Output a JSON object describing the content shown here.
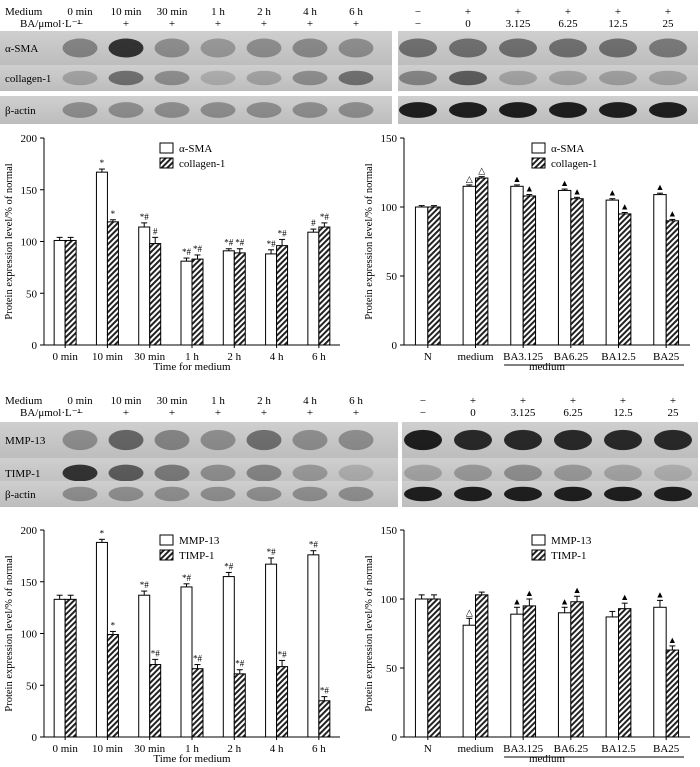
{
  "row_labels": {
    "medium": "Medium",
    "ba": "BA/μmol·L⁻¹"
  },
  "panels": {
    "top_left_blot": {
      "medium_row": [
        "0 min",
        "10 min",
        "30 min",
        "1 h",
        "2 h",
        "4 h",
        "6 h"
      ],
      "ba_row": [
        "−",
        "+",
        "+",
        "+",
        "+",
        "+",
        "+"
      ],
      "proteins": [
        "α-SMA",
        "collagen-1",
        "β-actin"
      ]
    },
    "top_right_blot": {
      "medium_row": [
        "−",
        "+",
        "+",
        "+",
        "+",
        "+"
      ],
      "ba_row": [
        "−",
        "0",
        "3.125",
        "6.25",
        "12.5",
        "25"
      ]
    },
    "bottom_left_blot": {
      "medium_row": [
        "0 min",
        "10 min",
        "30 min",
        "1 h",
        "2 h",
        "4 h",
        "6 h"
      ],
      "ba_row": [
        "−",
        "+",
        "+",
        "+",
        "+",
        "+",
        "+"
      ],
      "proteins": [
        "MMP-13",
        "TIMP-1",
        "β-actin"
      ]
    },
    "bottom_right_blot": {
      "medium_row": [
        "−",
        "+",
        "+",
        "+",
        "+",
        "+"
      ],
      "ba_row": [
        "−",
        "0",
        "3.125",
        "6.25",
        "12.5",
        "25"
      ]
    }
  },
  "colors": {
    "bar_white": "#ffffff",
    "bar_hatch": "#000000",
    "axis": "#000000"
  },
  "chart_data": [
    {
      "id": "A",
      "type": "bar",
      "categories": [
        "0 min",
        "10 min",
        "30 min",
        "1 h",
        "2 h",
        "4 h",
        "6 h"
      ],
      "xlabel": "Time for medium",
      "ylabel": "Protein expression level/% of normal",
      "ylim": [
        0,
        200
      ],
      "yticks": [
        0,
        50,
        100,
        150,
        200
      ],
      "legend_position": "top-center",
      "series": [
        {
          "name": "α-SMA",
          "fill": "white",
          "values": [
            101,
            167,
            114,
            81,
            91,
            88,
            109
          ],
          "errors": [
            3,
            3,
            4,
            3,
            2,
            4,
            3
          ],
          "marks": [
            "",
            "*",
            "*#",
            "*#",
            "*#",
            "*#",
            "#"
          ]
        },
        {
          "name": "collagen-1",
          "fill": "hatch",
          "values": [
            101,
            119,
            98,
            83,
            89,
            96,
            114
          ],
          "errors": [
            3,
            2,
            6,
            4,
            4,
            6,
            4
          ],
          "marks": [
            "",
            "*",
            "#",
            "*#",
            "*#",
            "*#",
            "*#"
          ]
        }
      ]
    },
    {
      "id": "B",
      "type": "bar",
      "categories": [
        "N",
        "medium",
        "BA3.125",
        "BA6.25",
        "BA12.5",
        "BA25"
      ],
      "xlabel": "medium",
      "ylabel": "Protein expression level/% of normal",
      "ylim": [
        0,
        150
      ],
      "yticks": [
        0,
        50,
        100,
        150
      ],
      "legend_position": "top-center",
      "series": [
        {
          "name": "α-SMA",
          "fill": "white",
          "values": [
            100,
            115,
            115,
            112,
            105,
            109
          ],
          "errors": [
            1,
            1,
            1,
            1,
            1,
            1
          ],
          "marks": [
            "",
            "△",
            "▲",
            "▲",
            "▲",
            "▲"
          ]
        },
        {
          "name": "collagen-1",
          "fill": "hatch",
          "values": [
            100,
            121,
            108,
            106,
            95,
            90
          ],
          "errors": [
            1,
            1,
            1,
            1,
            1,
            1
          ],
          "marks": [
            "",
            "△",
            "▲",
            "▲",
            "▲",
            "▲"
          ]
        }
      ]
    },
    {
      "id": "C",
      "type": "bar",
      "categories": [
        "0 min",
        "10 min",
        "30 min",
        "1 h",
        "2 h",
        "4 h",
        "6 h"
      ],
      "xlabel": "Time for medium",
      "ylabel": "Protein expression level/% of normal",
      "ylim": [
        0,
        200
      ],
      "yticks": [
        0,
        50,
        100,
        150,
        200
      ],
      "legend_position": "top-center",
      "series": [
        {
          "name": "MMP-13",
          "fill": "white",
          "values": [
            133,
            188,
            137,
            145,
            155,
            167,
            176
          ],
          "errors": [
            4,
            3,
            4,
            3,
            4,
            6,
            4
          ],
          "marks": [
            "",
            "*",
            "*#",
            "*#",
            "*#",
            "*#",
            "*#"
          ]
        },
        {
          "name": "TIMP-1",
          "fill": "hatch",
          "values": [
            133,
            99,
            70,
            66,
            61,
            68,
            35
          ],
          "errors": [
            4,
            3,
            5,
            4,
            4,
            6,
            4
          ],
          "marks": [
            "",
            "*",
            "*#",
            "*#",
            "*#",
            "*#",
            "*#"
          ]
        }
      ]
    },
    {
      "id": "D",
      "type": "bar",
      "categories": [
        "N",
        "medium",
        "BA3.125",
        "BA6.25",
        "BA12.5",
        "BA25"
      ],
      "xlabel": "medium",
      "ylabel": "Protein expression level/% of normal",
      "ylim": [
        0,
        150
      ],
      "yticks": [
        0,
        50,
        100,
        150
      ],
      "legend_position": "top-center",
      "series": [
        {
          "name": "MMP-13",
          "fill": "white",
          "values": [
            100,
            81,
            89,
            90,
            87,
            94
          ],
          "errors": [
            3,
            5,
            5,
            4,
            4,
            5
          ],
          "marks": [
            "",
            "△",
            "▲",
            "▲",
            "",
            "▲"
          ]
        },
        {
          "name": "TIMP-1",
          "fill": "hatch",
          "values": [
            100,
            103,
            95,
            98,
            93,
            63
          ],
          "errors": [
            3,
            2,
            5,
            4,
            4,
            3
          ],
          "marks": [
            "",
            "",
            "▲",
            "▲",
            "▲",
            "▲"
          ]
        }
      ]
    }
  ]
}
